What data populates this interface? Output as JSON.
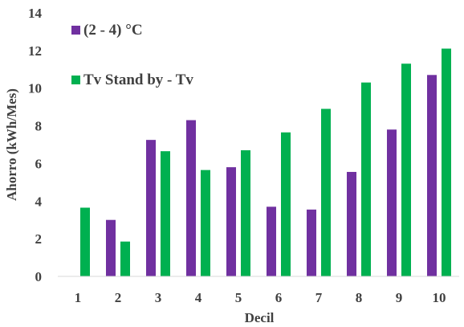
{
  "chart_data": {
    "type": "bar",
    "categories": [
      "1",
      "2",
      "3",
      "4",
      "5",
      "6",
      "7",
      "8",
      "9",
      "10"
    ],
    "series": [
      {
        "name": "(2 - 4) °C",
        "color": "#7030A0",
        "values": [
          null,
          3.0,
          7.25,
          8.3,
          5.8,
          3.7,
          3.55,
          5.55,
          7.8,
          10.7
        ]
      },
      {
        "name": "Tv Stand by - Tv",
        "color": "#00B050",
        "values": [
          3.65,
          1.85,
          6.65,
          5.65,
          6.7,
          7.65,
          8.9,
          10.3,
          11.3,
          12.1
        ]
      }
    ],
    "xlabel": "Decil",
    "ylabel": "Ahorro (kWh/Mes)",
    "ylim": [
      0,
      14
    ],
    "yticks": [
      "0",
      "2",
      "4",
      "6",
      "8",
      "10",
      "12",
      "14"
    ],
    "grid": false,
    "legend": "top-left"
  }
}
